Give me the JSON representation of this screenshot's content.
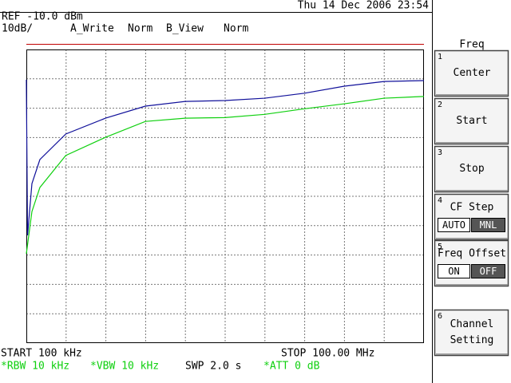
{
  "header": {
    "datetime": "Thu 14 Dec 2006 23:54",
    "ref": "REF -10.0 dBm",
    "scale": "10dB/",
    "trace_a": "A_Write",
    "trace_a_mode": "Norm",
    "trace_b": "B_View",
    "trace_b_mode": "Norm"
  },
  "chart_data": {
    "type": "line",
    "xlim": [
      0.1,
      100
    ],
    "ylim": [
      -110,
      -10
    ],
    "divisions": 10,
    "grid": true,
    "series": [
      {
        "color": "#10109a",
        "x": [
          0.1,
          0.4,
          1.5,
          3.5,
          10,
          20,
          30,
          40,
          50,
          60,
          70,
          80,
          90,
          100
        ],
        "values": [
          -20.3,
          -73.3,
          -55.7,
          -47.5,
          -38.8,
          -33.4,
          -29.3,
          -27.7,
          -27.4,
          -26.6,
          -24.9,
          -22.5,
          -20.9,
          -20.6
        ]
      },
      {
        "color": "#10d010",
        "x": [
          0.1,
          1.5,
          3.5,
          10,
          20,
          30,
          40,
          50,
          60,
          70,
          80,
          90,
          100
        ],
        "values": [
          -79.6,
          -65.2,
          -57.0,
          -46.1,
          -39.9,
          -34.5,
          -33.4,
          -33.2,
          -32.1,
          -30.2,
          -28.5,
          -26.6,
          -26.0
        ]
      }
    ]
  },
  "footer": {
    "start": "START 100 kHz",
    "stop": "STOP 100.00 MHz",
    "rbw": "*RBW 10 kHz",
    "vbw": "*VBW 10 kHz",
    "swp": "SWP 2.0 s",
    "att": "*ATT 0 dB"
  },
  "softkeys": {
    "title": "Freq",
    "keys": [
      {
        "number": "1",
        "lines": [
          "Center"
        ]
      },
      {
        "number": "2",
        "lines": [
          "Start"
        ]
      },
      {
        "number": "3",
        "lines": [
          "Stop"
        ]
      },
      {
        "number": "4",
        "lines": [
          "CF Step"
        ],
        "options": [
          "AUTO",
          "MNL"
        ],
        "selected": 1
      },
      {
        "number": "5",
        "lines": [
          "Freq Offset"
        ],
        "options": [
          "ON",
          "OFF"
        ],
        "selected": 1
      },
      {
        "number": "6",
        "lines": [
          "Channel",
          "Setting"
        ]
      }
    ]
  }
}
